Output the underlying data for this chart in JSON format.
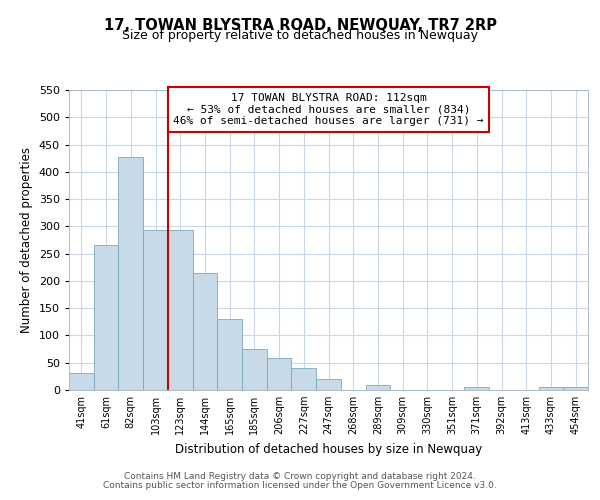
{
  "title": "17, TOWAN BLYSTRA ROAD, NEWQUAY, TR7 2RP",
  "subtitle": "Size of property relative to detached houses in Newquay",
  "xlabel": "Distribution of detached houses by size in Newquay",
  "ylabel": "Number of detached properties",
  "bar_labels": [
    "41sqm",
    "61sqm",
    "82sqm",
    "103sqm",
    "123sqm",
    "144sqm",
    "165sqm",
    "185sqm",
    "206sqm",
    "227sqm",
    "247sqm",
    "268sqm",
    "289sqm",
    "309sqm",
    "330sqm",
    "351sqm",
    "371sqm",
    "392sqm",
    "413sqm",
    "433sqm",
    "454sqm"
  ],
  "bar_values": [
    32,
    265,
    428,
    293,
    293,
    215,
    130,
    76,
    59,
    40,
    20,
    0,
    10,
    0,
    0,
    0,
    5,
    0,
    0,
    5,
    5
  ],
  "bar_color": "#c8dae8",
  "bar_edge_color": "#7aaabb",
  "vline_x_index": 3,
  "vline_color": "#cc0000",
  "ylim": [
    0,
    550
  ],
  "yticks": [
    0,
    50,
    100,
    150,
    200,
    250,
    300,
    350,
    400,
    450,
    500,
    550
  ],
  "annotation_title": "17 TOWAN BLYSTRA ROAD: 112sqm",
  "annotation_line1": "← 53% of detached houses are smaller (834)",
  "annotation_line2": "46% of semi-detached houses are larger (731) →",
  "annotation_box_color": "#ffffff",
  "annotation_box_edge": "#cc0000",
  "footer1": "Contains HM Land Registry data © Crown copyright and database right 2024.",
  "footer2": "Contains public sector information licensed under the Open Government Licence v3.0.",
  "background_color": "#ffffff",
  "grid_color": "#c8d8e8"
}
